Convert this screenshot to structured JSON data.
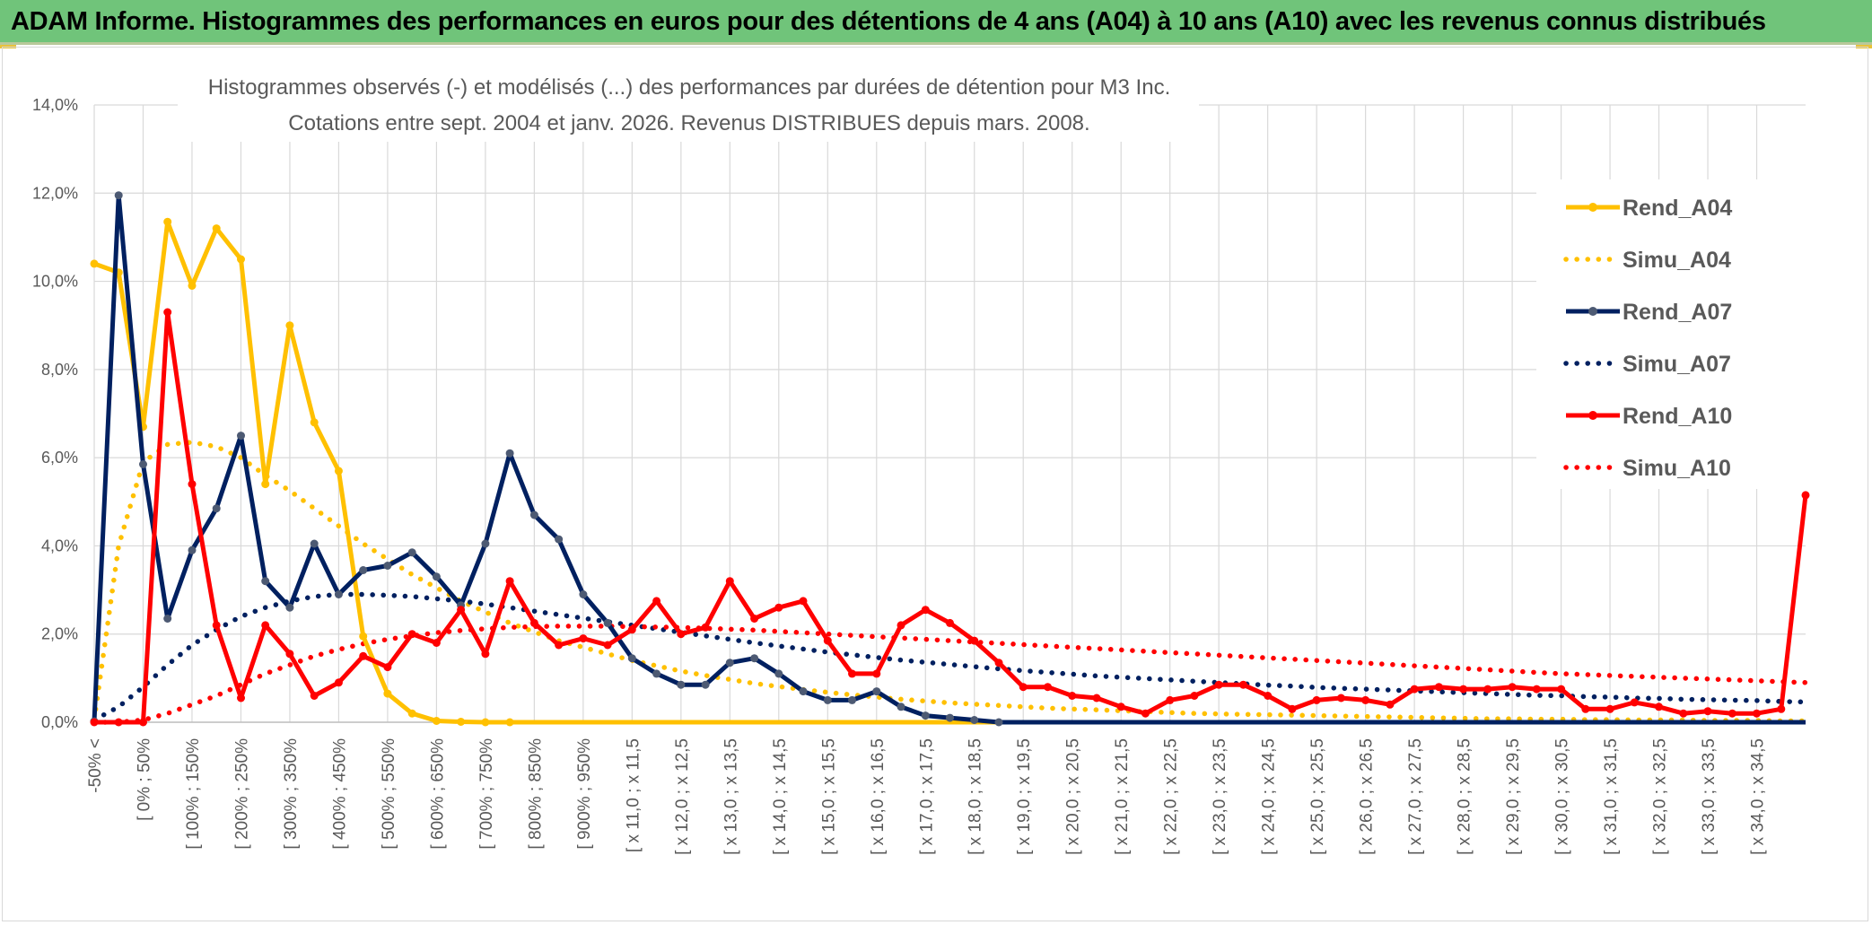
{
  "banner": {
    "title": "ADAM Informe. Histogrammes des performances en euros pour des détentions de 4 ans (A04) à 10 ans (A10) avec les revenus connus distribués"
  },
  "chart_data": {
    "type": "line",
    "title": "Histogrammes observés (-) et modélisés (...) des performances par durées de détention pour M3 Inc.",
    "subtitle": "Cotations entre sept. 2004 et janv. 2026. Revenus DISTRIBUES depuis mars. 2008.",
    "xlabel": "",
    "ylabel": "",
    "ylim": [
      0,
      14
    ],
    "y_ticks": [
      "0,0%",
      "2,0%",
      "4,0%",
      "6,0%",
      "8,0%",
      "10,0%",
      "12,0%",
      "14,0%"
    ],
    "grid": true,
    "legend_position": "right",
    "x_labels": [
      "-50% <",
      "[ 0% ; 50% ",
      "[ 100% ; 150% ",
      "[ 200% ; 250% ",
      "[ 300% ; 350% ",
      "[ 400% ; 450% ",
      "[ 500% ; 550% ",
      "[ 600% ; 650% ",
      "[ 700% ; 750% ",
      "[ 800% ; 850% ",
      "[ 900% ; 950% ",
      "[ x 11,0 ; x 11,5 ",
      "[ x 12,0 ; x 12,5 ",
      "[ x 13,0 ; x 13,5 ",
      "[ x 14,0 ; x 14,5 ",
      "[ x 15,0 ; x 15,5 ",
      "[ x 16,0 ; x 16,5 ",
      "[ x 17,0 ; x 17,5 ",
      "[ x 18,0 ; x 18,5 ",
      "[ x 19,0 ; x 19,5 ",
      "[ x 20,0 ; x 20,5 ",
      "[ x 21,0 ; x 21,5 ",
      "[ x 22,0 ; x 22,5 ",
      "[ x 23,0 ; x 23,5 ",
      "[ x 24,0 ; x 24,5 ",
      "[ x 25,0 ; x 25,5 ",
      "[ x 26,0 ; x 26,5 ",
      "[ x 27,0 ; x 27,5 ",
      "[ x 28,0 ; x 28,5 ",
      "[ x 29,0 ; x 29,5 ",
      "[ x 30,0 ; x 30,5 ",
      "[ x 31,0 ; x 31,5 ",
      "[ x 32,0 ; x 32,5 ",
      "[ x 33,0 ; x 33,5 ",
      "[ x 34,0 ; x 34,5 "
    ],
    "series": [
      {
        "name": "Rend_A04",
        "style": "solid",
        "color": "#FFC000",
        "values": [
          10.4,
          10.2,
          6.7,
          11.35,
          9.9,
          11.2,
          10.5,
          5.4,
          9.0,
          6.8,
          5.7,
          1.95,
          0.65,
          0.2,
          0.03,
          0.01,
          0,
          0,
          0,
          0,
          0,
          0,
          0,
          0,
          0,
          0,
          0,
          0,
          0,
          0,
          0,
          0,
          0,
          0,
          0,
          0,
          0,
          0,
          0,
          0,
          0,
          0,
          0,
          0,
          0,
          0,
          0,
          0,
          0,
          0,
          0,
          0,
          0,
          0,
          0,
          0,
          0,
          0,
          0,
          0,
          0,
          0,
          0,
          0,
          0,
          0,
          0,
          0,
          0,
          0,
          0
        ]
      },
      {
        "name": "Simu_A04",
        "style": "dotted",
        "color": "#FFC000",
        "values": [
          0.05,
          4.0,
          5.9,
          6.3,
          6.35,
          6.25,
          6.0,
          5.6,
          5.25,
          4.85,
          4.45,
          4.05,
          3.7,
          3.35,
          3.05,
          2.75,
          2.5,
          2.25,
          2.05,
          1.85,
          1.7,
          1.55,
          1.4,
          1.28,
          1.16,
          1.06,
          0.97,
          0.88,
          0.81,
          0.74,
          0.68,
          0.62,
          0.57,
          0.52,
          0.48,
          0.44,
          0.41,
          0.38,
          0.35,
          0.32,
          0.3,
          0.28,
          0.26,
          0.24,
          0.22,
          0.2,
          0.19,
          0.18,
          0.17,
          0.16,
          0.15,
          0.14,
          0.13,
          0.12,
          0.11,
          0.1,
          0.09,
          0.08,
          0.08,
          0.07,
          0.07,
          0.06,
          0.06,
          0.05,
          0.05,
          0.05,
          0.04,
          0.04,
          0.04,
          0.03,
          0.03
        ]
      },
      {
        "name": "Rend_A07",
        "style": "solid",
        "color": "#002060",
        "values": [
          0.02,
          11.95,
          5.85,
          2.35,
          3.9,
          4.85,
          6.5,
          3.2,
          2.6,
          4.05,
          2.9,
          3.45,
          3.55,
          3.85,
          3.3,
          2.65,
          4.05,
          6.1,
          4.7,
          4.15,
          2.9,
          2.25,
          1.45,
          1.1,
          0.85,
          0.85,
          1.35,
          1.45,
          1.1,
          0.7,
          0.5,
          0.5,
          0.7,
          0.35,
          0.15,
          0.1,
          0.05,
          0,
          0,
          0,
          0,
          0,
          0,
          0,
          0,
          0,
          0,
          0,
          0,
          0,
          0,
          0,
          0,
          0,
          0,
          0,
          0,
          0,
          0,
          0,
          0,
          0,
          0,
          0,
          0,
          0,
          0,
          0,
          0,
          0,
          0
        ]
      },
      {
        "name": "Simu_A07",
        "style": "dotted",
        "color": "#002060",
        "values": [
          0.05,
          0.35,
          0.8,
          1.3,
          1.75,
          2.1,
          2.4,
          2.6,
          2.75,
          2.85,
          2.9,
          2.9,
          2.88,
          2.85,
          2.8,
          2.75,
          2.68,
          2.6,
          2.52,
          2.44,
          2.36,
          2.28,
          2.2,
          2.12,
          2.04,
          1.96,
          1.88,
          1.8,
          1.73,
          1.66,
          1.59,
          1.53,
          1.47,
          1.41,
          1.36,
          1.31,
          1.26,
          1.21,
          1.17,
          1.13,
          1.09,
          1.05,
          1.02,
          0.99,
          0.96,
          0.93,
          0.9,
          0.87,
          0.84,
          0.82,
          0.79,
          0.77,
          0.75,
          0.73,
          0.71,
          0.69,
          0.67,
          0.65,
          0.63,
          0.61,
          0.6,
          0.58,
          0.57,
          0.55,
          0.54,
          0.52,
          0.51,
          0.5,
          0.49,
          0.47,
          0.46
        ]
      },
      {
        "name": "Rend_A10",
        "style": "solid",
        "color": "#FF0000",
        "values": [
          0,
          0,
          0,
          9.3,
          5.4,
          2.2,
          0.55,
          2.2,
          1.55,
          0.6,
          0.9,
          1.5,
          1.25,
          2.0,
          1.8,
          2.55,
          1.55,
          3.2,
          2.25,
          1.75,
          1.9,
          1.75,
          2.1,
          2.75,
          2.0,
          2.15,
          3.2,
          2.35,
          2.6,
          2.75,
          1.85,
          1.1,
          1.1,
          2.2,
          2.55,
          2.25,
          1.85,
          1.35,
          0.8,
          0.8,
          0.6,
          0.55,
          0.35,
          0.2,
          0.5,
          0.6,
          0.85,
          0.85,
          0.6,
          0.3,
          0.5,
          0.55,
          0.5,
          0.4,
          0.75,
          0.8,
          0.75,
          0.75,
          0.8,
          0.75,
          0.75,
          0.3,
          0.3,
          0.45,
          0.35,
          0.2,
          0.25,
          0.2,
          0.2,
          0.3,
          5.15
        ]
      },
      {
        "name": "Simu_A10",
        "style": "dotted",
        "color": "#FF0000",
        "values": [
          0.0,
          0.0,
          0.05,
          0.2,
          0.4,
          0.6,
          0.85,
          1.1,
          1.3,
          1.5,
          1.65,
          1.78,
          1.88,
          1.96,
          2.03,
          2.08,
          2.12,
          2.15,
          2.17,
          2.18,
          2.18,
          2.18,
          2.17,
          2.16,
          2.15,
          2.13,
          2.11,
          2.09,
          2.06,
          2.03,
          2.0,
          1.97,
          1.94,
          1.91,
          1.88,
          1.85,
          1.82,
          1.79,
          1.76,
          1.73,
          1.7,
          1.67,
          1.64,
          1.61,
          1.58,
          1.55,
          1.52,
          1.49,
          1.46,
          1.43,
          1.4,
          1.37,
          1.34,
          1.31,
          1.28,
          1.25,
          1.22,
          1.19,
          1.16,
          1.13,
          1.1,
          1.08,
          1.06,
          1.04,
          1.02,
          1.0,
          0.98,
          0.96,
          0.94,
          0.92,
          0.9
        ]
      }
    ]
  }
}
